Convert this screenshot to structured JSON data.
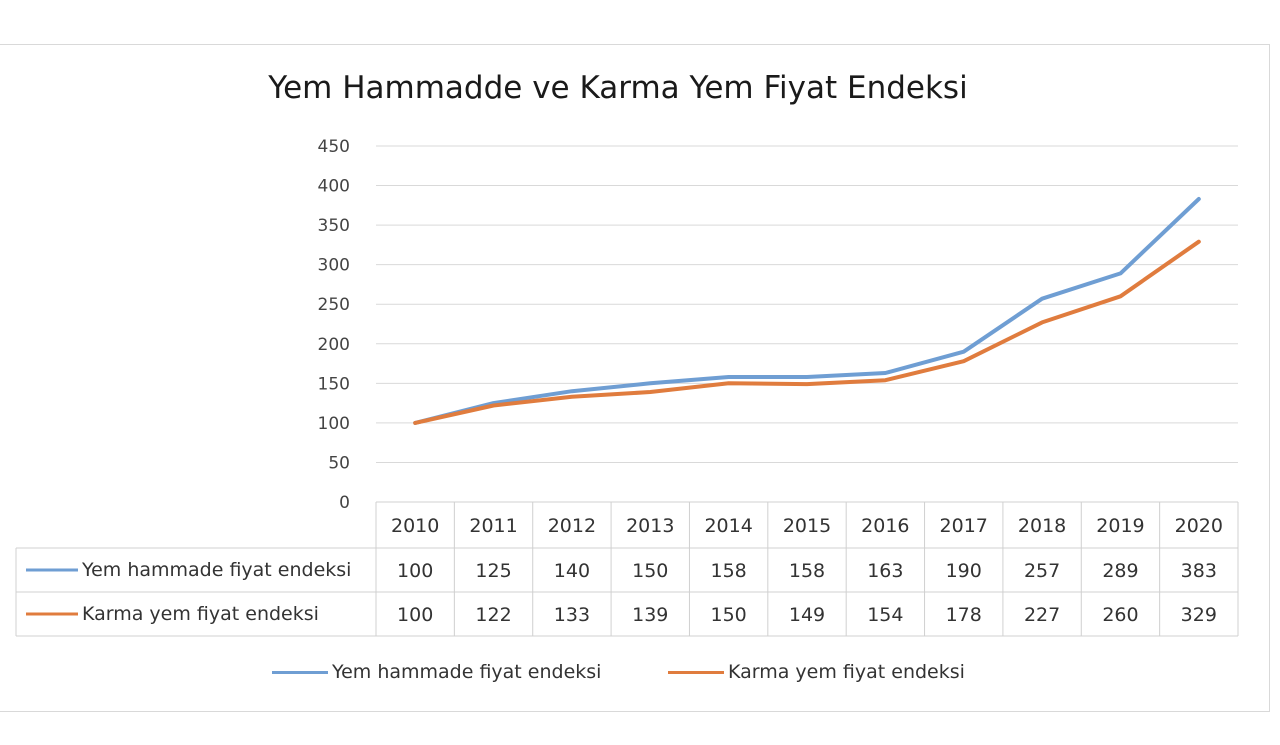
{
  "chart_data": {
    "type": "line",
    "title": "Yem Hammadde  ve Karma Yem Fiyat Endeksi",
    "categories": [
      "2010",
      "2011",
      "2012",
      "2013",
      "2014",
      "2015",
      "2016",
      "2017",
      "2018",
      "2019",
      "2020"
    ],
    "ylim": [
      0,
      450
    ],
    "yticks": [
      0,
      50,
      100,
      150,
      200,
      250,
      300,
      350,
      400,
      450
    ],
    "grid": true,
    "legend_position": "bottom",
    "data_table": true,
    "series": [
      {
        "name": "Yem hammade fiyat endeksi",
        "color": "#6f9ed3",
        "values": [
          100,
          125,
          140,
          150,
          158,
          158,
          163,
          190,
          257,
          289,
          383
        ]
      },
      {
        "name": "Karma yem fiyat endeksi",
        "color": "#e07c3e",
        "values": [
          100,
          122,
          133,
          139,
          150,
          149,
          154,
          178,
          227,
          260,
          329
        ]
      }
    ]
  }
}
